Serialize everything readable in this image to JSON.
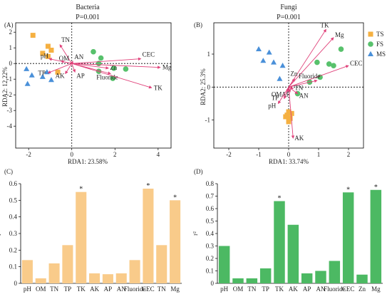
{
  "panels": {
    "A": {
      "label": "(A)",
      "title": "Bacteria",
      "pvalue": "P=0.001",
      "xlabel": "RDA1: 23.58%",
      "ylabel": "RDA2: 12.22%"
    },
    "B": {
      "label": "(B)",
      "title": "Fungi",
      "pvalue": "P=0.001",
      "xlabel": "RDA1: 33.74%",
      "ylabel": "RDA2: 25.3%"
    },
    "C": {
      "label": "(C)"
    },
    "D": {
      "label": "(D)"
    }
  },
  "legend": [
    {
      "name": "TS",
      "marker": "square",
      "color": "#F5B041"
    },
    {
      "name": "FS",
      "marker": "circle",
      "color": "#58C16C"
    },
    {
      "name": "MS",
      "marker": "triangle",
      "color": "#4A90D9"
    }
  ],
  "colors": {
    "arrow": "#E0427A",
    "barC": "#F9CB8A",
    "barD": "#4CB963",
    "star": "#4A4A6A"
  },
  "chart_data": [
    {
      "type": "scatter",
      "panel": "A",
      "title": "Bacteria",
      "subtitle": "P=0.001",
      "xlabel": "RDA1: 23.58%",
      "ylabel": "RDA2: 12.22%",
      "xlim": [
        -2.6,
        4.6
      ],
      "ylim": [
        -5.4,
        2.6
      ],
      "xticks": [
        -2,
        0,
        2,
        4
      ],
      "yticks": [
        -4,
        -3,
        -2,
        -1,
        0,
        1,
        2
      ],
      "series": [
        {
          "name": "TS",
          "points": [
            [
              -1.8,
              1.8
            ],
            [
              -1.1,
              1.1
            ],
            [
              -0.95,
              0.85
            ],
            [
              -1.35,
              0.65
            ],
            [
              -1.1,
              0.45
            ],
            [
              -0.65,
              -0.55
            ]
          ]
        },
        {
          "name": "FS",
          "points": [
            [
              1.0,
              0.75
            ],
            [
              1.35,
              0.35
            ],
            [
              1.25,
              0.0
            ],
            [
              1.95,
              -0.3
            ],
            [
              1.25,
              -0.5
            ],
            [
              2.5,
              -0.35
            ],
            [
              1.9,
              -0.95
            ]
          ]
        },
        {
          "name": "MS",
          "points": [
            [
              -2.1,
              -0.35
            ],
            [
              -1.85,
              -0.75
            ],
            [
              -1.15,
              -0.55
            ],
            [
              -1.35,
              -0.85
            ],
            [
              -0.95,
              -1.05
            ],
            [
              -2.05,
              -1.3
            ]
          ]
        }
      ],
      "vectors": [
        {
          "name": "TN",
          "x": -0.55,
          "y": 1.2
        },
        {
          "name": "pH",
          "x": -1.05,
          "y": 0.3
        },
        {
          "name": "OM",
          "x": -0.5,
          "y": 0.15
        },
        {
          "name": "AN",
          "x": 0.05,
          "y": 0.15
        },
        {
          "name": "TP",
          "x": -1.1,
          "y": -0.6
        },
        {
          "name": "AK",
          "x": -0.3,
          "y": -0.65
        },
        {
          "name": "AP",
          "x": 0.15,
          "y": -0.55
        },
        {
          "name": "Zn",
          "x": 1.7,
          "y": -0.3
        },
        {
          "name": "Fluoride",
          "x": 1.8,
          "y": -0.65
        },
        {
          "name": "CEC",
          "x": 3.2,
          "y": 0.3
        },
        {
          "name": "Mg",
          "x": 4.1,
          "y": -0.25
        },
        {
          "name": "TK",
          "x": 3.7,
          "y": -1.55
        }
      ]
    },
    {
      "type": "scatter",
      "panel": "B",
      "title": "Fungi",
      "subtitle": "P=0.001",
      "xlabel": "RDA1: 33.74%",
      "ylabel": "RDA2: 25.3%",
      "xlim": [
        -2.5,
        2.5
      ],
      "ylim": [
        -1.85,
        1.95
      ],
      "xticks": [
        -2,
        -1,
        0,
        1,
        2
      ],
      "yticks": [
        -1,
        0,
        1
      ],
      "series": [
        {
          "name": "TS",
          "points": [
            [
              0.0,
              -0.75
            ],
            [
              -0.05,
              -0.85
            ],
            [
              0.05,
              -0.95
            ],
            [
              -0.1,
              -0.9
            ],
            [
              0.0,
              -1.05
            ],
            [
              0.1,
              -0.8
            ]
          ]
        },
        {
          "name": "FS",
          "points": [
            [
              0.3,
              -0.2
            ],
            [
              1.35,
              0.7
            ],
            [
              1.5,
              0.65
            ],
            [
              1.75,
              1.15
            ],
            [
              1.05,
              0.3
            ],
            [
              0.7,
              0.15
            ],
            [
              0.95,
              0.75
            ]
          ]
        },
        {
          "name": "MS",
          "points": [
            [
              -1.0,
              1.15
            ],
            [
              -0.65,
              1.05
            ],
            [
              -0.85,
              0.8
            ],
            [
              -0.5,
              0.75
            ],
            [
              -0.2,
              0.65
            ],
            [
              -0.3,
              0.25
            ]
          ]
        }
      ],
      "vectors": [
        {
          "name": "TK",
          "x": 1.25,
          "y": 1.75
        },
        {
          "name": "Mg",
          "x": 1.5,
          "y": 1.5
        },
        {
          "name": "CEC",
          "x": 2.0,
          "y": 0.65
        },
        {
          "name": "Fluoride",
          "x": 0.95,
          "y": 0.2
        },
        {
          "name": "Zn",
          "x": 0.2,
          "y": 0.25
        },
        {
          "name": "TN",
          "x": 0.15,
          "y": -0.05
        },
        {
          "name": "AN",
          "x": 0.3,
          "y": -0.2
        },
        {
          "name": "OM",
          "x": -0.05,
          "y": -0.15
        },
        {
          "name": "AP",
          "x": 0.05,
          "y": -0.15
        },
        {
          "name": "pH",
          "x": -0.35,
          "y": -0.5
        },
        {
          "name": "TP",
          "x": -0.15,
          "y": -0.35
        },
        {
          "name": "AK",
          "x": 0.15,
          "y": -1.55
        }
      ]
    },
    {
      "type": "bar",
      "panel": "C",
      "ylabel": "r²",
      "ylim": [
        0,
        0.6
      ],
      "yticks": [
        0,
        0.1,
        0.2,
        0.3,
        0.4,
        0.5,
        0.6
      ],
      "categories": [
        "pH",
        "OM",
        "TN",
        "TP",
        "TK",
        "AK",
        "AP",
        "AN",
        "Fluoride",
        "CEC",
        "TN",
        "Mg"
      ],
      "values": [
        0.14,
        0.03,
        0.12,
        0.23,
        0.55,
        0.06,
        0.055,
        0.06,
        0.14,
        0.57,
        0.23,
        0.5
      ],
      "significant": [
        false,
        false,
        false,
        false,
        true,
        false,
        false,
        false,
        false,
        true,
        false,
        true
      ]
    },
    {
      "type": "bar",
      "panel": "D",
      "ylabel": "r²",
      "ylim": [
        0,
        0.8
      ],
      "yticks": [
        0,
        0.1,
        0.2,
        0.3,
        0.4,
        0.5,
        0.6,
        0.7,
        0.8
      ],
      "categories": [
        "pH",
        "OM",
        "TN",
        "TP",
        "TK",
        "AK",
        "AP",
        "AN",
        "Fluoride",
        "CEC",
        "Zn",
        "Mg"
      ],
      "values": [
        0.3,
        0.04,
        0.04,
        0.12,
        0.66,
        0.47,
        0.08,
        0.1,
        0.18,
        0.73,
        0.07,
        0.75
      ],
      "significant": [
        false,
        false,
        false,
        false,
        true,
        false,
        false,
        false,
        false,
        true,
        false,
        true
      ]
    }
  ]
}
